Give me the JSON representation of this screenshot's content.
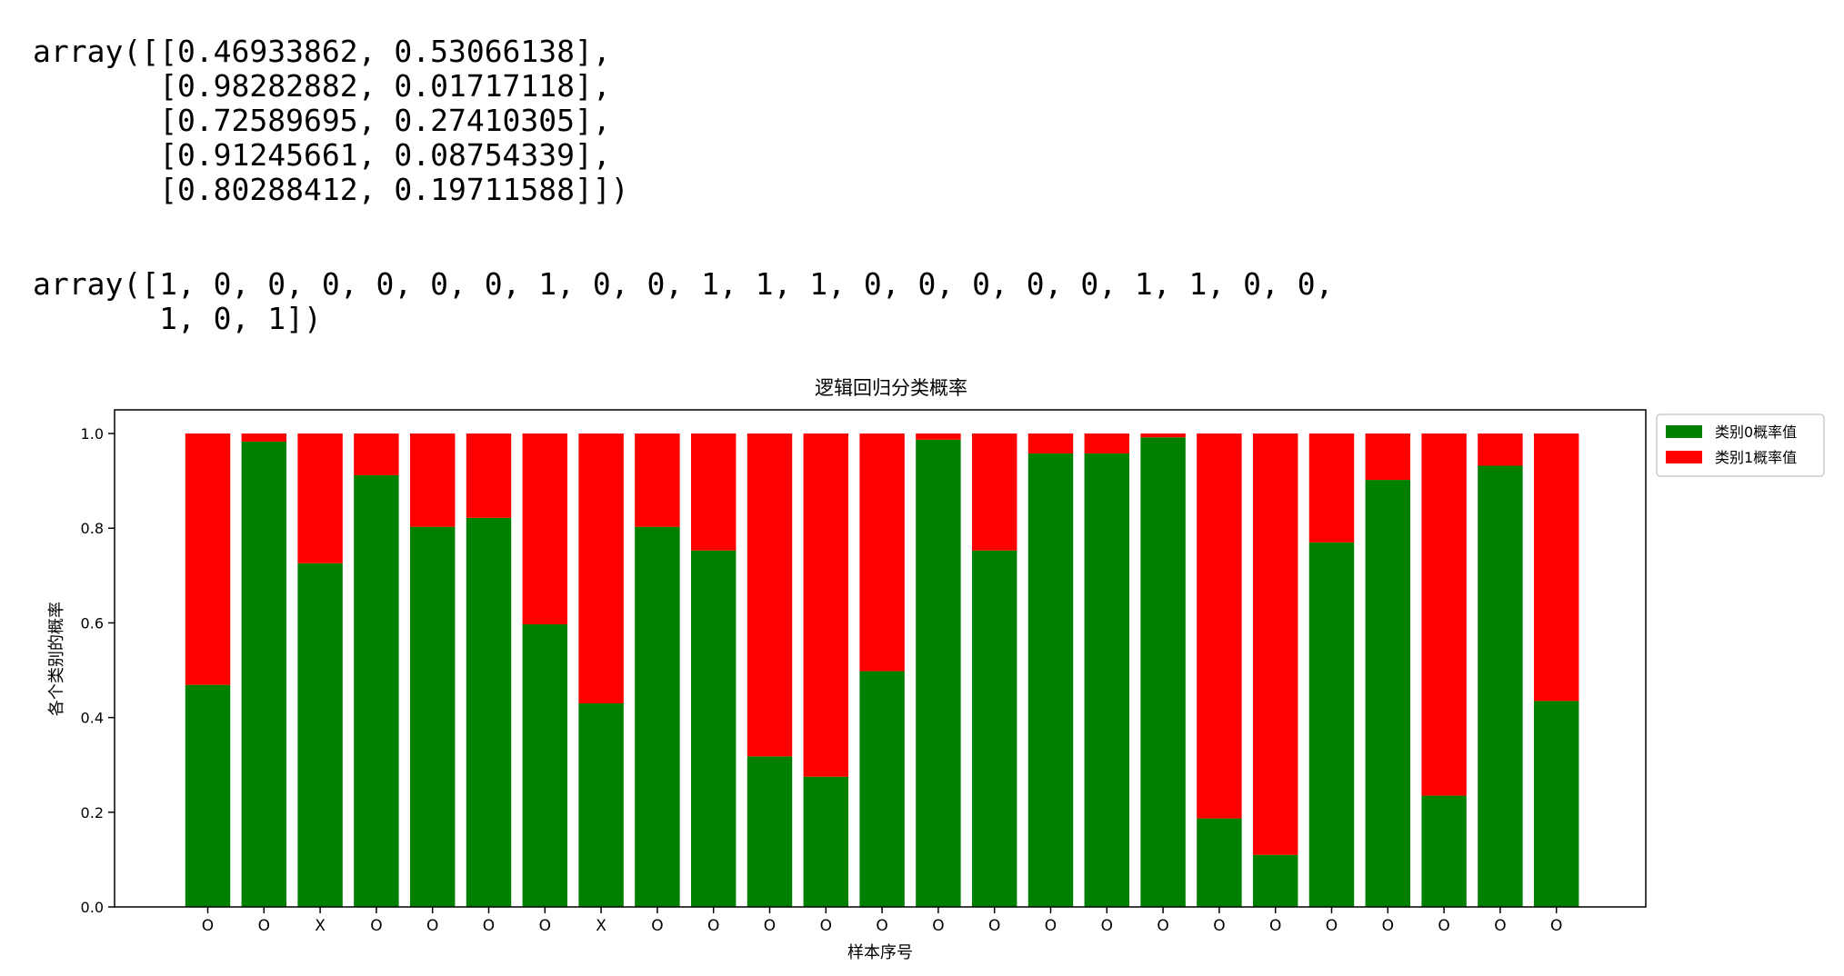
{
  "output_prob": {
    "lines": [
      "array([[0.46933862, 0.53066138],",
      "       [0.98282882, 0.01717118],",
      "       [0.72589695, 0.27410305],",
      "       [0.91245661, 0.08754339],",
      "       [0.80288412, 0.19711588]])"
    ]
  },
  "output_pred": {
    "lines": [
      "array([1, 0, 0, 0, 0, 0, 0, 1, 0, 0, 1, 1, 1, 0, 0, 0, 0, 0, 1, 1, 0, 0,",
      "       1, 0, 1])"
    ]
  },
  "chart_data": {
    "type": "bar",
    "stacked": true,
    "title": "逻辑回归分类概率",
    "xlabel": "样本序号",
    "ylabel": "各个类别的概率",
    "ylim": [
      0,
      1.05
    ],
    "yticks": [
      0.0,
      0.2,
      0.4,
      0.6,
      0.8,
      1.0
    ],
    "ytick_labels": [
      "0.0",
      "0.2",
      "0.4",
      "0.6",
      "0.8",
      "1.0"
    ],
    "categories": [
      "O",
      "O",
      "X",
      "O",
      "O",
      "O",
      "O",
      "X",
      "O",
      "O",
      "O",
      "O",
      "O",
      "O",
      "O",
      "O",
      "O",
      "O",
      "O",
      "O",
      "O",
      "O",
      "O",
      "O",
      "O"
    ],
    "legend_position": "outside-top-right",
    "grid": false,
    "series": [
      {
        "name": "类别0概率值",
        "color": "#008000",
        "values": [
          0.469,
          0.983,
          0.726,
          0.912,
          0.803,
          0.822,
          0.597,
          0.43,
          0.803,
          0.753,
          0.318,
          0.275,
          0.498,
          0.987,
          0.753,
          0.958,
          0.958,
          0.992,
          0.187,
          0.11,
          0.77,
          0.902,
          0.235,
          0.932,
          0.435
        ]
      },
      {
        "name": "类别1概率值",
        "color": "#ff0000",
        "values": [
          0.531,
          0.017,
          0.274,
          0.088,
          0.197,
          0.178,
          0.403,
          0.57,
          0.197,
          0.247,
          0.682,
          0.725,
          0.502,
          0.013,
          0.247,
          0.042,
          0.042,
          0.008,
          0.813,
          0.89,
          0.23,
          0.098,
          0.765,
          0.068,
          0.565
        ]
      }
    ]
  }
}
